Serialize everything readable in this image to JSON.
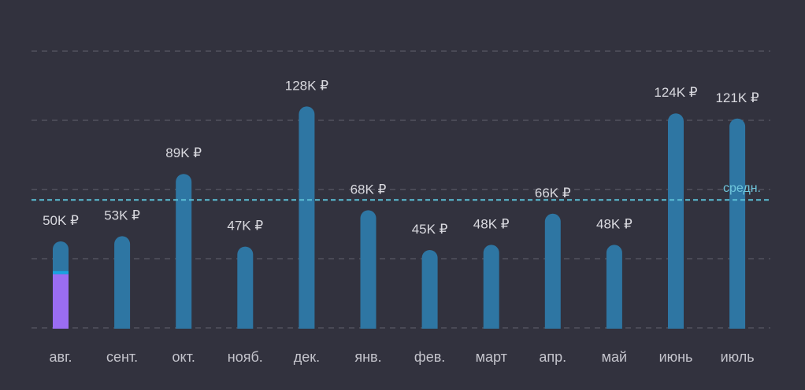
{
  "colors": {
    "background": "#32323e",
    "bar": "#2e76a3",
    "highlight": "#9a6df2",
    "highlight_cap": "#1aa3e0",
    "grid": "#5a5a66",
    "average_line": "#5bbfd6",
    "value_text": "#d9d9df",
    "tick_text": "#c4c4cc"
  },
  "chart_data": {
    "type": "bar",
    "categories": [
      "авг.",
      "сент.",
      "окт.",
      "нояб.",
      "дек.",
      "янв.",
      "фев.",
      "март",
      "апр.",
      "май",
      "июнь",
      "июль"
    ],
    "values": [
      50,
      53,
      89,
      47,
      128,
      68,
      45,
      48,
      66,
      48,
      124,
      121
    ],
    "value_labels": [
      "50K ₽",
      "53K ₽",
      "89K ₽",
      "47K ₽",
      "128K ₽",
      "68K ₽",
      "45K ₽",
      "48K ₽",
      "66K ₽",
      "48K ₽",
      "124K ₽",
      "121K ₽"
    ],
    "highlight": {
      "index": 0,
      "value": 31
    },
    "average": {
      "value": 74,
      "label": "средн."
    },
    "ylim": [
      0,
      160
    ],
    "grid": true,
    "title": "",
    "xlabel": "",
    "ylabel": ""
  }
}
